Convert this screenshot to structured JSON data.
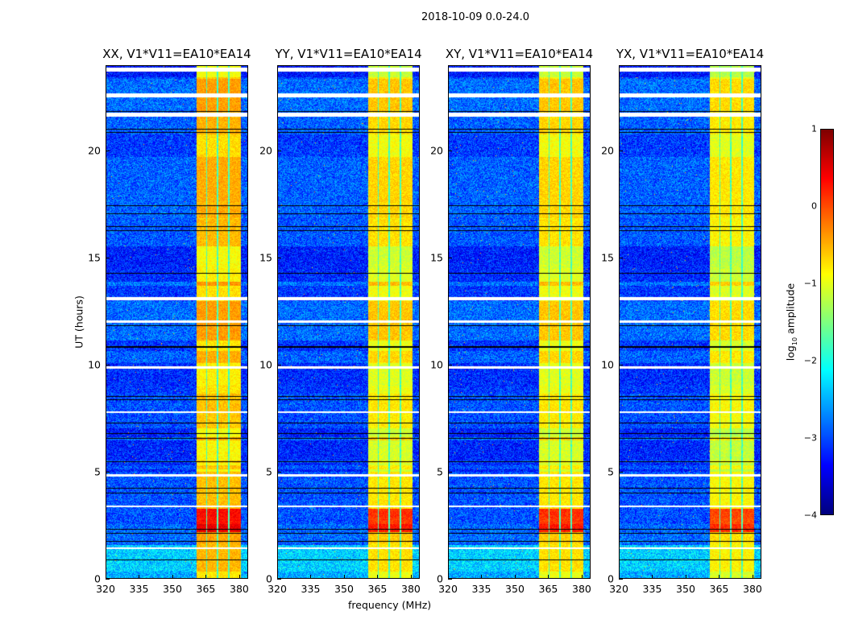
{
  "chart_data": {
    "type": "heatmap",
    "title": "2018-10-09 0.0-24.0",
    "xlabel": "frequency (MHz)",
    "ylabel": "UT (hours)",
    "xlim": [
      320,
      384
    ],
    "ylim": [
      0,
      24
    ],
    "xticks": [
      "320",
      "335",
      "350",
      "365",
      "380"
    ],
    "yticks": [
      "0",
      "5",
      "10",
      "15",
      "20"
    ],
    "panels": [
      {
        "title": "XX, V1*V11=EA10*EA14",
        "band_level": -0.6
      },
      {
        "title": "YY, V1*V11=EA10*EA14",
        "band_level": -0.8
      },
      {
        "title": "XY, V1*V11=EA10*EA14",
        "band_level": -0.8
      },
      {
        "title": "YX, V1*V11=EA10*EA14",
        "band_level": -0.9
      }
    ],
    "background_level": -3.0,
    "band_mhz": [
      360.5,
      380.5
    ],
    "band_channel_gaps_mhz": [
      365.2,
      370.2,
      375.3
    ],
    "strong_rfi_hours": [
      2.2,
      3.3
    ],
    "flagged_hours": [
      [
        23.7,
        23.9
      ],
      [
        22.5,
        22.7
      ],
      [
        21.6,
        21.8
      ],
      [
        13.05,
        13.2
      ],
      [
        12.0,
        12.1
      ],
      [
        9.85,
        9.95
      ],
      [
        7.75,
        7.85
      ],
      [
        4.8,
        4.9
      ],
      [
        3.35,
        3.45
      ],
      [
        1.4,
        1.5
      ]
    ],
    "colorbar": {
      "label": "log10 amplitude",
      "range": [
        -4,
        1
      ],
      "ticks": [
        "1",
        "0",
        "−1",
        "−2",
        "−3",
        "−4"
      ],
      "colormap": "jet"
    }
  }
}
